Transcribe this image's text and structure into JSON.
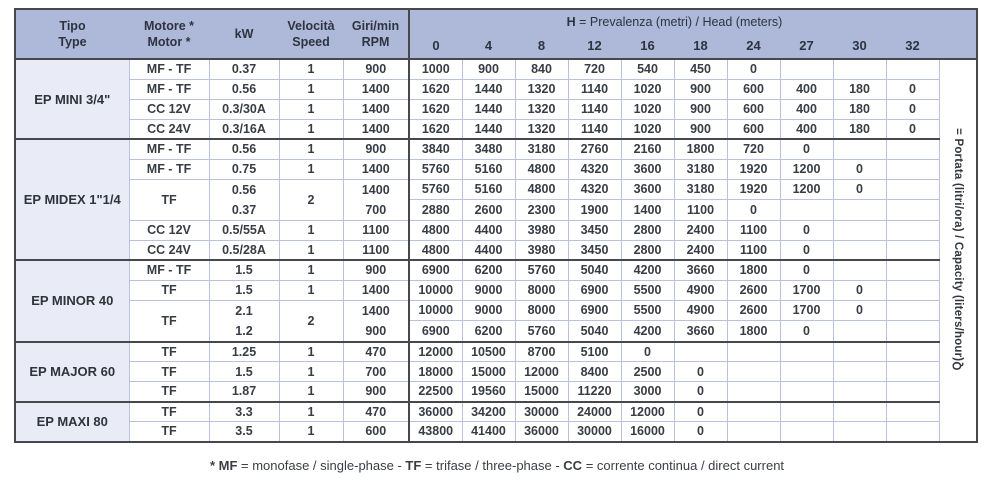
{
  "table": {
    "left_headers": [
      {
        "key": "tipo",
        "line1": "Tipo",
        "line2": "Type"
      },
      {
        "key": "motor",
        "line1": "Motore *",
        "line2": "Motor *"
      },
      {
        "key": "kw",
        "line1": "kW",
        "line2": ""
      },
      {
        "key": "speed",
        "line1": "Velocità",
        "line2": "Speed"
      },
      {
        "key": "rpm",
        "line1": "Giri/min",
        "line2": "RPM"
      }
    ],
    "h_header": {
      "bold": "H",
      "rest": " = Prevalenza (metri) / Head (meters)"
    },
    "h_columns": [
      "0",
      "4",
      "8",
      "12",
      "16",
      "18",
      "24",
      "27",
      "30",
      "32"
    ],
    "q_label": {
      "bold": "Q",
      "rest": " = Portata (litri/ora) / Capacity (liters/hour)"
    },
    "groups": [
      {
        "name": "EP MINI 3/4\"",
        "rows": [
          {
            "motor": "MF - TF",
            "kw": "0.37",
            "speed": "1",
            "rpm": "900",
            "q": [
              "1000",
              "900",
              "840",
              "720",
              "540",
              "450",
              "0",
              "",
              "",
              ""
            ]
          },
          {
            "motor": "MF - TF",
            "kw": "0.56",
            "speed": "1",
            "rpm": "1400",
            "q": [
              "1620",
              "1440",
              "1320",
              "1140",
              "1020",
              "900",
              "600",
              "400",
              "180",
              "0"
            ]
          },
          {
            "motor": "CC 12V",
            "kw": "0.3/30A",
            "speed": "1",
            "rpm": "1400",
            "q": [
              "1620",
              "1440",
              "1320",
              "1140",
              "1020",
              "900",
              "600",
              "400",
              "180",
              "0"
            ]
          },
          {
            "motor": "CC 24V",
            "kw": "0.3/16A",
            "speed": "1",
            "rpm": "1400",
            "q": [
              "1620",
              "1440",
              "1320",
              "1140",
              "1020",
              "900",
              "600",
              "400",
              "180",
              "0"
            ]
          }
        ]
      },
      {
        "name": "EP MIDEX 1\"1/4",
        "rows": [
          {
            "motor": "MF - TF",
            "kw": "0.56",
            "speed": "1",
            "rpm": "900",
            "q": [
              "3840",
              "3480",
              "3180",
              "2760",
              "2160",
              "1800",
              "720",
              "0",
              "",
              ""
            ]
          },
          {
            "motor": "MF - TF",
            "kw": "0.75",
            "speed": "1",
            "rpm": "1400",
            "q": [
              "5760",
              "5160",
              "4800",
              "4320",
              "3600",
              "3180",
              "1920",
              "1200",
              "0",
              ""
            ]
          },
          {
            "motor": "TF",
            "double": true,
            "kw": [
              "0.56",
              "0.37"
            ],
            "speed": "2",
            "rpm": [
              "1400",
              "700"
            ],
            "q": [
              [
                "5760",
                "5160",
                "4800",
                "4320",
                "3600",
                "3180",
                "1920",
                "1200",
                "0",
                ""
              ],
              [
                "2880",
                "2600",
                "2300",
                "1900",
                "1400",
                "1100",
                "0",
                "",
                "",
                ""
              ]
            ]
          },
          {
            "motor": "CC 12V",
            "kw": "0.5/55A",
            "speed": "1",
            "rpm": "1100",
            "q": [
              "4800",
              "4400",
              "3980",
              "3450",
              "2800",
              "2400",
              "1100",
              "0",
              "",
              ""
            ]
          },
          {
            "motor": "CC 24V",
            "kw": "0.5/28A",
            "speed": "1",
            "rpm": "1100",
            "q": [
              "4800",
              "4400",
              "3980",
              "3450",
              "2800",
              "2400",
              "1100",
              "0",
              "",
              ""
            ]
          }
        ]
      },
      {
        "name": "EP MINOR 40",
        "rows": [
          {
            "motor": "MF - TF",
            "kw": "1.5",
            "speed": "1",
            "rpm": "900",
            "q": [
              "6900",
              "6200",
              "5760",
              "5040",
              "4200",
              "3660",
              "1800",
              "0",
              "",
              ""
            ]
          },
          {
            "motor": "TF",
            "kw": "1.5",
            "speed": "1",
            "rpm": "1400",
            "q": [
              "10000",
              "9000",
              "8000",
              "6900",
              "5500",
              "4900",
              "2600",
              "1700",
              "0",
              ""
            ]
          },
          {
            "motor": "TF",
            "double": true,
            "kw": [
              "2.1",
              "1.2"
            ],
            "speed": "2",
            "rpm": [
              "1400",
              "900"
            ],
            "q": [
              [
                "10000",
                "9000",
                "8000",
                "6900",
                "5500",
                "4900",
                "2600",
                "1700",
                "0",
                ""
              ],
              [
                "6900",
                "6200",
                "5760",
                "5040",
                "4200",
                "3660",
                "1800",
                "0",
                "",
                ""
              ]
            ]
          }
        ]
      },
      {
        "name": "EP MAJOR 60",
        "rows": [
          {
            "motor": "TF",
            "kw": "1.25",
            "speed": "1",
            "rpm": "470",
            "q": [
              "12000",
              "10500",
              "8700",
              "5100",
              "0",
              "",
              "",
              "",
              "",
              ""
            ]
          },
          {
            "motor": "TF",
            "kw": "1.5",
            "speed": "1",
            "rpm": "700",
            "q": [
              "18000",
              "15000",
              "12000",
              "8400",
              "2500",
              "0",
              "",
              "",
              "",
              ""
            ]
          },
          {
            "motor": "TF",
            "kw": "1.87",
            "speed": "1",
            "rpm": "900",
            "q": [
              "22500",
              "19560",
              "15000",
              "11220",
              "3000",
              "0",
              "",
              "",
              "",
              ""
            ]
          }
        ]
      },
      {
        "name": "EP MAXI 80",
        "rows": [
          {
            "motor": "TF",
            "kw": "3.3",
            "speed": "1",
            "rpm": "470",
            "q": [
              "36000",
              "34200",
              "30000",
              "24000",
              "12000",
              "0",
              "",
              "",
              "",
              ""
            ]
          },
          {
            "motor": "TF",
            "kw": "3.5",
            "speed": "1",
            "rpm": "600",
            "q": [
              "43800",
              "41400",
              "36000",
              "30000",
              "16000",
              "0",
              "",
              "",
              "",
              ""
            ]
          }
        ]
      }
    ]
  },
  "footnote": {
    "segments": [
      {
        "text": "* MF",
        "bold": true
      },
      {
        "text": " = monofase / single-phase - ",
        "bold": false
      },
      {
        "text": "TF",
        "bold": true
      },
      {
        "text": " = trifase / three-phase - ",
        "bold": false
      },
      {
        "text": "CC",
        "bold": true
      },
      {
        "text": " = corrente continua / direct current",
        "bold": false
      }
    ]
  }
}
